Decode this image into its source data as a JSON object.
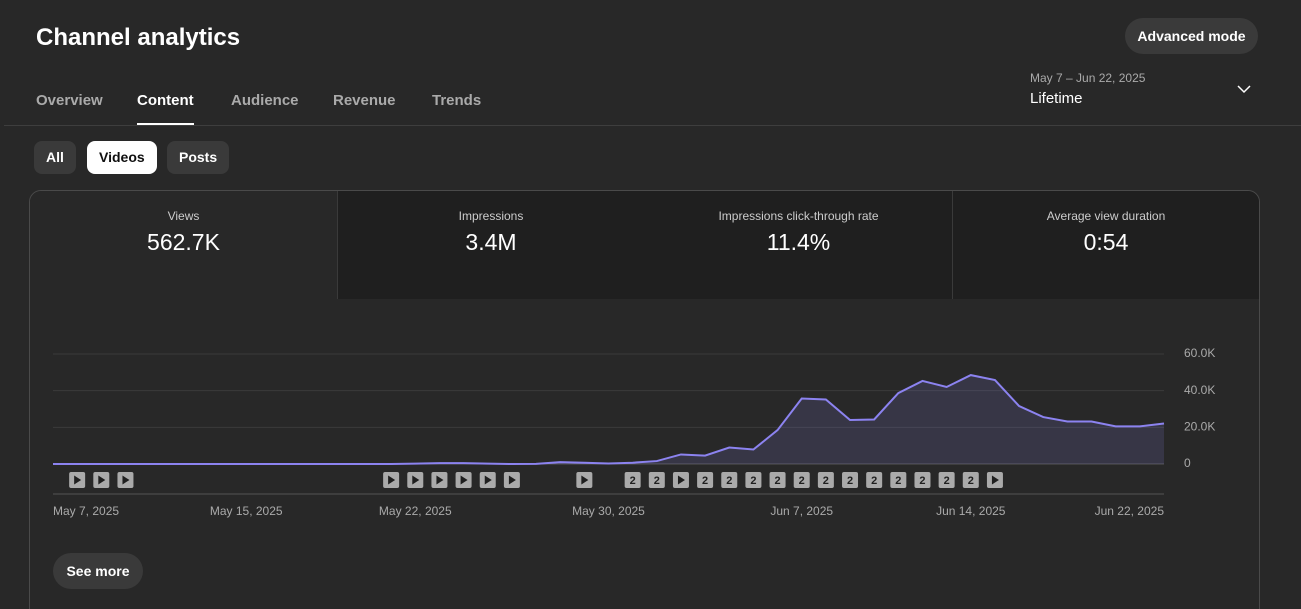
{
  "header": {
    "title": "Channel analytics",
    "advanced_button": "Advanced mode"
  },
  "tabs": {
    "items": [
      "Overview",
      "Content",
      "Audience",
      "Revenue",
      "Trends"
    ],
    "active": 1
  },
  "date_range": {
    "range": "May 7 – Jun 22, 2025",
    "period": "Lifetime"
  },
  "filters": {
    "items": [
      "All",
      "Videos",
      "Posts"
    ],
    "active": 1
  },
  "metrics": [
    {
      "label": "Views",
      "value": "562.7K"
    },
    {
      "label": "Impressions",
      "value": "3.4M"
    },
    {
      "label": "Impressions click-through rate",
      "value": "11.4%"
    },
    {
      "label": "Average view duration",
      "value": "0:54"
    }
  ],
  "selected_metric": 0,
  "see_more": "See more",
  "chart_data": {
    "type": "line",
    "categories": [
      "May 7, 2025",
      null,
      null,
      null,
      null,
      null,
      null,
      null,
      "May 15, 2025",
      null,
      null,
      null,
      null,
      null,
      null,
      "May 22, 2025",
      null,
      null,
      null,
      null,
      null,
      null,
      null,
      "May 30, 2025",
      null,
      null,
      null,
      null,
      null,
      null,
      null,
      "Jun 7, 2025",
      null,
      null,
      null,
      null,
      null,
      null,
      "Jun 14, 2025",
      null,
      null,
      null,
      null,
      null,
      null,
      null,
      "Jun 22, 2025"
    ],
    "series": [
      {
        "name": "Views",
        "color": "#8c83f0",
        "values": [
          0,
          0,
          0,
          0,
          0,
          0,
          0,
          0,
          0,
          0,
          0,
          0,
          0,
          0,
          0,
          200,
          500,
          500,
          200,
          0,
          100,
          1000,
          700,
          300,
          700,
          1600,
          5200,
          4600,
          9000,
          7900,
          18500,
          35700,
          35200,
          24000,
          24300,
          38700,
          45300,
          42000,
          48500,
          45800,
          31600,
          25600,
          23200,
          23200,
          20500,
          20500,
          22100
        ]
      }
    ],
    "uploads": [
      null,
      1,
      1,
      1,
      null,
      null,
      null,
      null,
      null,
      null,
      null,
      null,
      null,
      null,
      1,
      1,
      1,
      1,
      1,
      1,
      null,
      null,
      1,
      null,
      2,
      2,
      1,
      2,
      2,
      2,
      2,
      2,
      2,
      2,
      2,
      2,
      2,
      2,
      2,
      1,
      null,
      null,
      null,
      null,
      null,
      null,
      null
    ],
    "ylim": [
      0,
      60000
    ],
    "yticks": [
      0,
      {
        "value": 20000,
        "label": "20.0K"
      },
      {
        "value": 40000,
        "label": "40.0K"
      },
      {
        "value": 60000,
        "label": "60.0K"
      }
    ],
    "grid": true
  }
}
